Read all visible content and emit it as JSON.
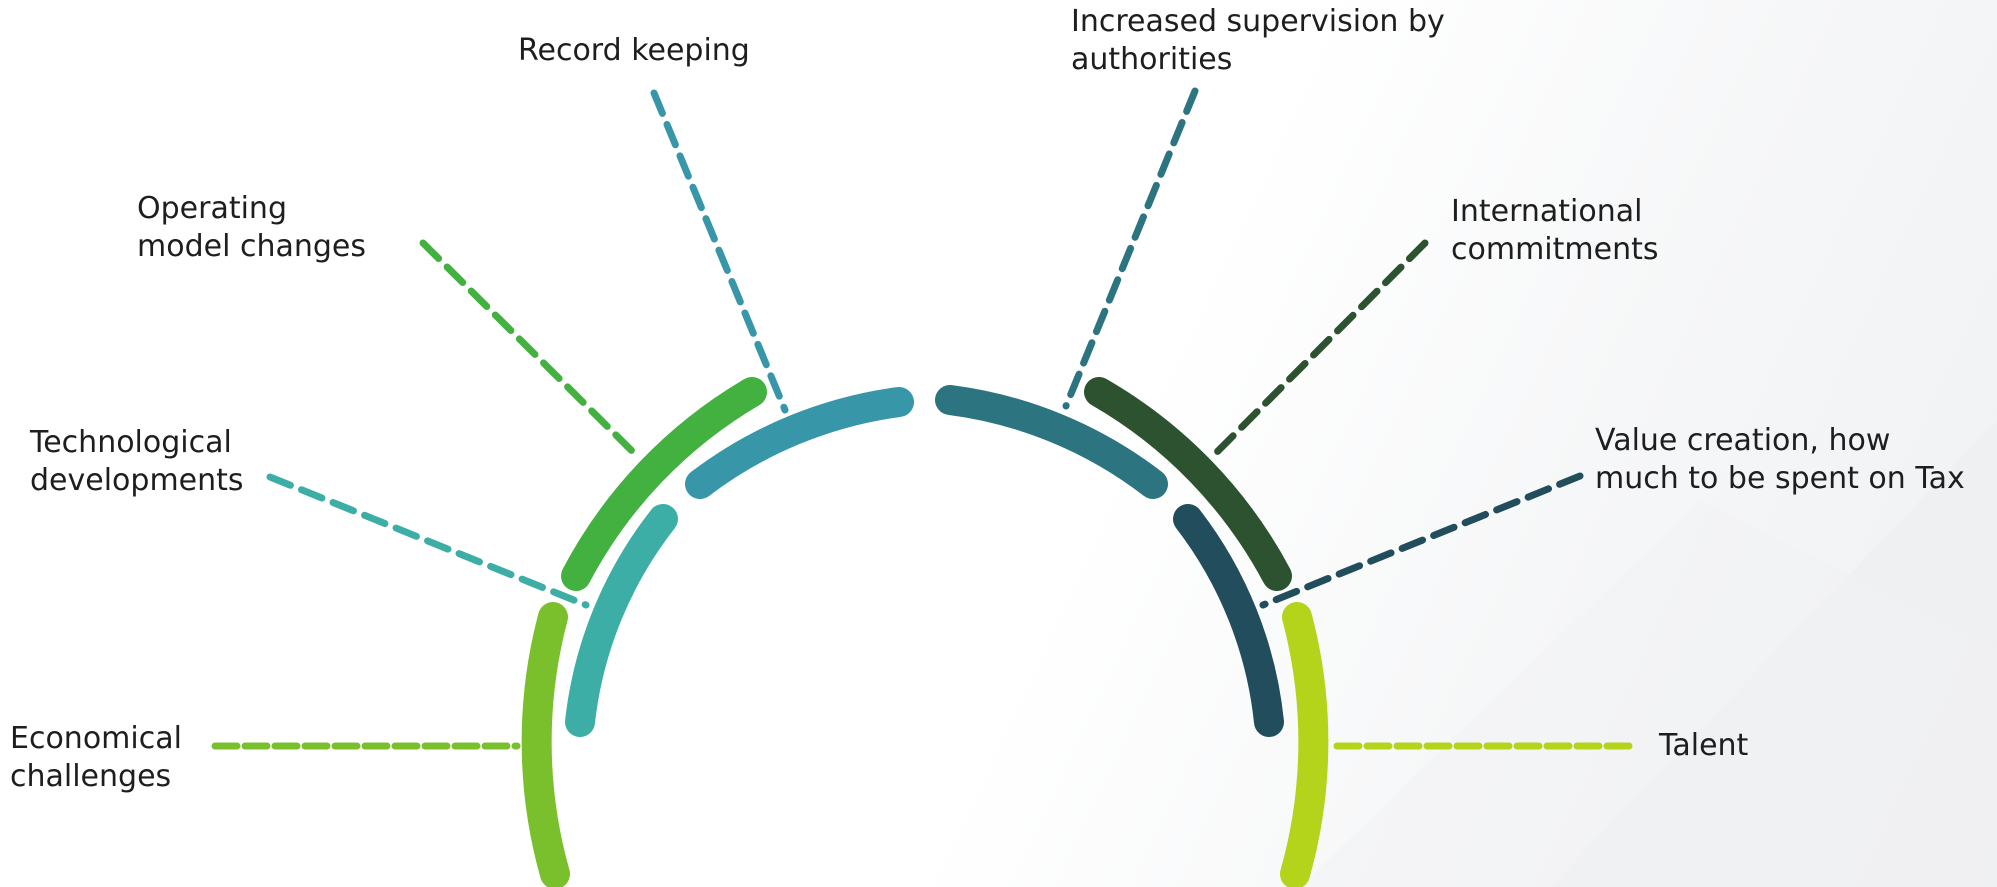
{
  "arcs": [
    {
      "color": "#7ac02c"
    },
    {
      "color": "#3daea6"
    },
    {
      "color": "#42b13f"
    },
    {
      "color": "#3896a9"
    },
    {
      "color": "#2b7480"
    },
    {
      "color": "#2d5230"
    },
    {
      "color": "#214d5d"
    },
    {
      "color": "#b3d41b"
    }
  ],
  "labels": {
    "economical": {
      "line1": "Economical",
      "line2": "challenges",
      "color": "#7ac02c"
    },
    "technological": {
      "line1": "Technological",
      "line2": "developments",
      "color": "#3daea6"
    },
    "operating": {
      "line1": "Operating",
      "line2": "model changes",
      "color": "#42b13f"
    },
    "record": {
      "line1": "Record keeping",
      "color": "#3896a9"
    },
    "supervision": {
      "line1": "Increased supervision by",
      "line2": "authorities",
      "color": "#2b7480"
    },
    "international": {
      "line1": "International",
      "line2": "commitments",
      "color": "#2d5230"
    },
    "value": {
      "line1": "Value creation, how",
      "line2": "much to be spent on Tax",
      "color": "#214d5d"
    },
    "talent": {
      "line1": "Talent",
      "color": "#b3d41b"
    }
  }
}
